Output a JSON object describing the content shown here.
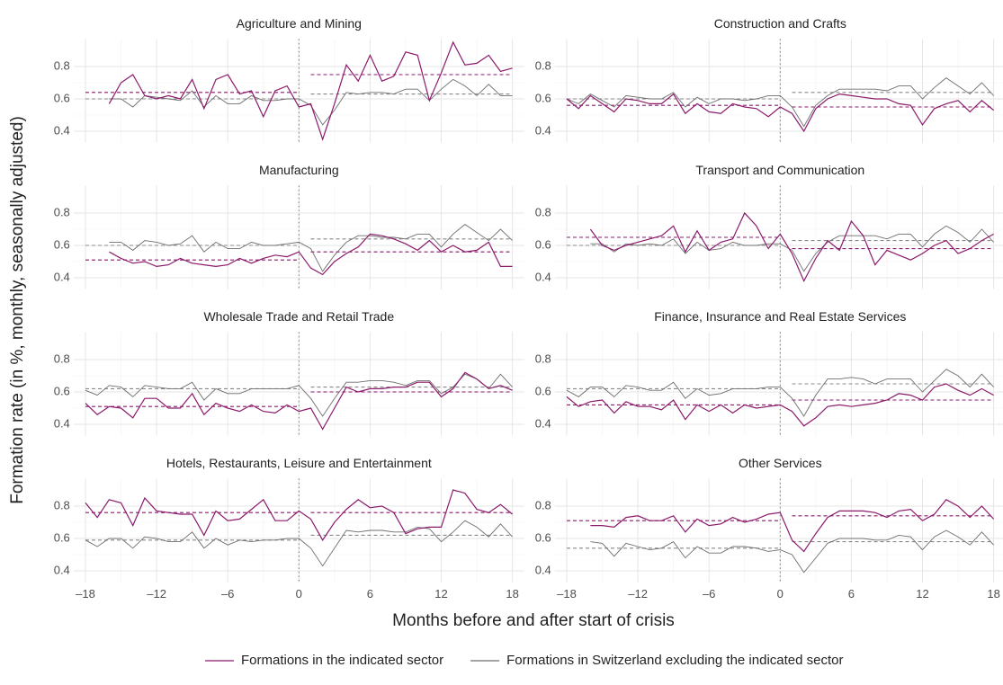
{
  "chart_data": {
    "type": "line",
    "xlabel": "Months before and after start of crisis",
    "ylabel": "Formation rate (in %, monthly, seasonally adjusted)",
    "x": [
      -18,
      -17,
      -16,
      -15,
      -14,
      -13,
      -12,
      -11,
      -10,
      -9,
      -8,
      -7,
      -6,
      -5,
      -4,
      -3,
      -2,
      -1,
      0,
      1,
      2,
      3,
      4,
      5,
      6,
      7,
      8,
      9,
      10,
      11,
      12,
      13,
      14,
      15,
      16,
      17,
      18
    ],
    "xlim": [
      -19,
      19
    ],
    "xticks": [
      {
        "value": -18,
        "label": "–18"
      },
      {
        "value": -12,
        "label": "–12"
      },
      {
        "value": -6,
        "label": "–6"
      },
      0,
      6,
      12,
      18
    ],
    "ylim": [
      0.33,
      0.97
    ],
    "yticks": [
      0.4,
      0.6,
      0.8
    ],
    "grid": true,
    "crisis_start": 0,
    "legend": "bottom",
    "series": [
      {
        "name": "Formations in the indicated sector",
        "color": "#8b1a6b"
      },
      {
        "name": "Formations in Switzerland excluding the indicated sector",
        "color": "#6e6e6e"
      }
    ],
    "panels": [
      {
        "title": "Agriculture and Mining",
        "pre_mean": [
          0.64,
          0.6
        ],
        "post_mean": [
          0.75,
          0.63
        ],
        "values": [
          [
            null,
            null,
            0.57,
            0.7,
            0.75,
            0.62,
            0.6,
            0.62,
            0.6,
            0.72,
            0.54,
            0.72,
            0.75,
            0.63,
            0.65,
            0.49,
            0.65,
            0.68,
            0.55,
            0.57,
            0.35,
            0.57,
            0.81,
            0.71,
            0.87,
            0.71,
            0.74,
            0.89,
            0.87,
            0.59,
            0.76,
            0.95,
            0.81,
            0.82,
            0.87,
            0.77,
            0.79
          ],
          [
            null,
            null,
            0.6,
            0.6,
            0.55,
            0.62,
            0.61,
            0.6,
            0.59,
            0.65,
            0.55,
            0.62,
            0.57,
            0.57,
            0.62,
            0.59,
            0.59,
            0.6,
            0.6,
            0.56,
            0.44,
            0.53,
            0.64,
            0.63,
            0.64,
            0.64,
            0.63,
            0.66,
            0.66,
            0.59,
            0.66,
            0.72,
            0.68,
            0.62,
            0.69,
            0.62,
            0.62
          ]
        ]
      },
      {
        "title": "Construction and Crafts",
        "pre_mean": [
          0.56,
          0.6
        ],
        "post_mean": [
          0.55,
          0.64
        ],
        "values": [
          [
            0.6,
            0.54,
            0.62,
            0.57,
            0.52,
            0.6,
            0.59,
            0.57,
            0.57,
            0.63,
            0.51,
            0.57,
            0.52,
            0.51,
            0.57,
            0.55,
            0.54,
            0.49,
            0.55,
            0.51,
            0.4,
            0.54,
            0.6,
            0.63,
            0.62,
            0.61,
            0.6,
            0.6,
            0.57,
            0.56,
            0.44,
            0.54,
            0.57,
            0.59,
            0.52,
            0.59,
            0.53
          ],
          [
            0.6,
            0.57,
            0.63,
            0.59,
            0.55,
            0.62,
            0.61,
            0.6,
            0.6,
            0.64,
            0.55,
            0.61,
            0.57,
            0.6,
            0.6,
            0.59,
            0.6,
            0.62,
            0.62,
            0.55,
            0.43,
            0.56,
            0.62,
            0.66,
            0.66,
            0.66,
            0.66,
            0.65,
            0.68,
            0.68,
            0.6,
            0.67,
            0.73,
            0.68,
            0.63,
            0.7,
            0.62
          ]
        ]
      },
      {
        "title": "Manufacturing",
        "pre_mean": [
          0.51,
          0.6
        ],
        "post_mean": [
          0.56,
          0.64
        ],
        "values": [
          [
            null,
            null,
            0.56,
            0.52,
            0.49,
            0.5,
            0.47,
            0.48,
            0.52,
            0.49,
            0.48,
            0.47,
            0.48,
            0.52,
            0.49,
            0.52,
            0.54,
            0.53,
            0.56,
            0.46,
            0.42,
            0.5,
            0.55,
            0.59,
            0.67,
            0.66,
            0.64,
            0.61,
            0.57,
            0.63,
            0.56,
            0.6,
            0.56,
            0.57,
            0.62,
            0.47,
            0.47
          ],
          [
            null,
            null,
            0.62,
            0.62,
            0.57,
            0.63,
            0.62,
            0.6,
            0.61,
            0.66,
            0.56,
            0.62,
            0.58,
            0.58,
            0.62,
            0.6,
            0.6,
            0.61,
            0.62,
            0.58,
            0.44,
            0.54,
            0.62,
            0.66,
            0.66,
            0.65,
            0.65,
            0.64,
            0.67,
            0.67,
            0.59,
            0.67,
            0.73,
            0.68,
            0.63,
            0.7,
            0.63
          ]
        ]
      },
      {
        "title": "Transport and Communication",
        "pre_mean": [
          0.65,
          0.6
        ],
        "post_mean": [
          0.58,
          0.63
        ],
        "values": [
          [
            null,
            null,
            0.7,
            0.6,
            0.57,
            0.6,
            0.62,
            0.64,
            0.66,
            0.72,
            0.56,
            0.69,
            0.57,
            0.62,
            0.64,
            0.8,
            0.72,
            0.58,
            0.67,
            0.55,
            0.38,
            0.52,
            0.63,
            0.57,
            0.75,
            0.66,
            0.48,
            0.57,
            0.54,
            0.51,
            0.55,
            0.6,
            0.63,
            0.55,
            0.58,
            0.63,
            0.67
          ],
          [
            null,
            null,
            0.61,
            0.61,
            0.56,
            0.61,
            0.6,
            0.61,
            0.6,
            0.64,
            0.55,
            0.62,
            0.57,
            0.58,
            0.62,
            0.6,
            0.6,
            0.61,
            0.61,
            0.57,
            0.44,
            0.55,
            0.62,
            0.66,
            0.66,
            0.66,
            0.66,
            0.64,
            0.67,
            0.67,
            0.59,
            0.67,
            0.72,
            0.68,
            0.62,
            0.7,
            0.62
          ]
        ]
      },
      {
        "title": "Wholesale Trade and Retail Trade",
        "pre_mean": [
          0.51,
          0.62
        ],
        "post_mean": [
          0.6,
          0.63
        ],
        "values": [
          [
            0.53,
            0.46,
            0.51,
            0.5,
            0.44,
            0.56,
            0.56,
            0.5,
            0.5,
            0.59,
            0.46,
            0.53,
            0.5,
            0.48,
            0.52,
            0.48,
            0.47,
            0.52,
            0.48,
            0.5,
            0.37,
            0.5,
            0.63,
            0.6,
            0.62,
            0.62,
            0.63,
            0.63,
            0.66,
            0.66,
            0.57,
            0.62,
            0.72,
            0.68,
            0.62,
            0.64,
            0.61
          ],
          [
            0.61,
            0.58,
            0.64,
            0.63,
            0.57,
            0.64,
            0.63,
            0.62,
            0.62,
            0.66,
            0.55,
            0.62,
            0.59,
            0.59,
            0.62,
            0.62,
            0.62,
            0.62,
            0.64,
            0.56,
            0.45,
            0.56,
            0.66,
            0.66,
            0.67,
            0.67,
            0.66,
            0.64,
            0.67,
            0.67,
            0.59,
            0.63,
            0.71,
            0.68,
            0.62,
            0.71,
            0.63
          ]
        ]
      },
      {
        "title": "Finance, Insurance and Real Estate Services",
        "pre_mean": [
          0.52,
          0.62
        ],
        "post_mean": [
          0.55,
          0.65
        ],
        "values": [
          [
            0.57,
            0.51,
            0.54,
            0.55,
            0.47,
            0.54,
            0.51,
            0.51,
            0.49,
            0.55,
            0.43,
            0.52,
            0.48,
            0.52,
            0.47,
            0.52,
            0.5,
            0.51,
            0.52,
            0.48,
            0.39,
            0.44,
            0.51,
            0.52,
            0.51,
            0.52,
            0.53,
            0.55,
            0.59,
            0.58,
            0.55,
            0.63,
            0.65,
            0.61,
            0.58,
            0.62,
            0.58
          ],
          [
            0.61,
            0.57,
            0.63,
            0.63,
            0.57,
            0.64,
            0.63,
            0.61,
            0.61,
            0.66,
            0.56,
            0.62,
            0.58,
            0.59,
            0.62,
            0.62,
            0.62,
            0.63,
            0.63,
            0.56,
            0.45,
            0.58,
            0.68,
            0.68,
            0.69,
            0.68,
            0.65,
            0.68,
            0.68,
            0.68,
            0.6,
            0.67,
            0.74,
            0.7,
            0.63,
            0.71,
            0.63
          ]
        ]
      },
      {
        "title": "Hotels, Restaurants, Leisure and Entertainment",
        "pre_mean": [
          0.76,
          0.59
        ],
        "post_mean": [
          0.76,
          0.62
        ],
        "values": [
          [
            0.82,
            0.73,
            0.84,
            0.82,
            0.68,
            0.85,
            0.77,
            0.76,
            0.75,
            0.75,
            0.62,
            0.77,
            0.71,
            0.72,
            0.78,
            0.84,
            0.71,
            0.71,
            0.77,
            0.72,
            0.59,
            0.7,
            0.78,
            0.84,
            0.79,
            0.8,
            0.76,
            0.63,
            0.66,
            0.67,
            0.67,
            0.9,
            0.88,
            0.78,
            0.76,
            0.81,
            0.75
          ],
          [
            0.59,
            0.55,
            0.6,
            0.6,
            0.54,
            0.61,
            0.6,
            0.58,
            0.58,
            0.64,
            0.54,
            0.6,
            0.56,
            0.59,
            0.58,
            0.59,
            0.59,
            0.6,
            0.6,
            0.54,
            0.43,
            0.54,
            0.65,
            0.64,
            0.65,
            0.65,
            0.64,
            0.64,
            0.67,
            0.66,
            0.58,
            0.64,
            0.71,
            0.67,
            0.61,
            0.69,
            0.61
          ]
        ]
      },
      {
        "title": "Other Services",
        "pre_mean": [
          0.71,
          0.54
        ],
        "post_mean": [
          0.74,
          0.58
        ],
        "values": [
          [
            null,
            null,
            0.68,
            0.68,
            0.67,
            0.73,
            0.74,
            0.71,
            0.71,
            0.74,
            0.64,
            0.72,
            0.68,
            0.69,
            0.73,
            0.7,
            0.72,
            0.75,
            0.76,
            0.59,
            0.52,
            0.63,
            0.73,
            0.77,
            0.77,
            0.77,
            0.76,
            0.73,
            0.77,
            0.78,
            0.71,
            0.75,
            0.84,
            0.8,
            0.73,
            0.8,
            0.72
          ],
          [
            null,
            null,
            0.58,
            0.57,
            0.49,
            0.57,
            0.55,
            0.53,
            0.54,
            0.58,
            0.48,
            0.55,
            0.51,
            0.51,
            0.55,
            0.55,
            0.54,
            0.52,
            0.53,
            0.5,
            0.39,
            0.48,
            0.57,
            0.6,
            0.6,
            0.6,
            0.59,
            0.59,
            0.62,
            0.61,
            0.53,
            0.61,
            0.65,
            0.61,
            0.56,
            0.64,
            0.56
          ]
        ]
      }
    ]
  }
}
